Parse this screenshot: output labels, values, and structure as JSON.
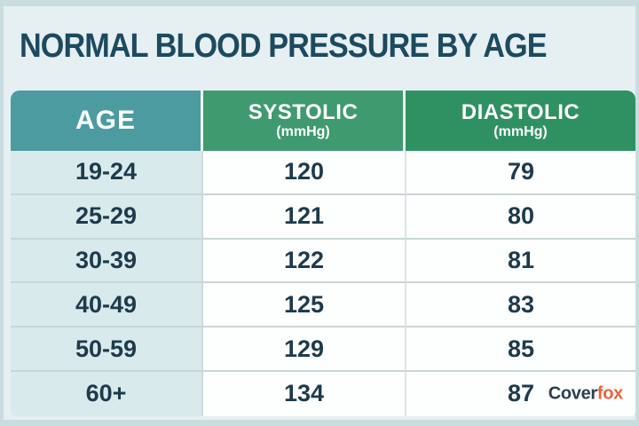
{
  "title": "NORMAL BLOOD PRESSURE BY AGE",
  "brand": {
    "prefix": "Cover",
    "suffix": "fox"
  },
  "colors": {
    "age_header": "#4c9ba1",
    "systolic_header": "#3f9a70",
    "diastolic_header": "#2f9162",
    "age_cell": "#d9eaec",
    "value_cell": "#fdfefe",
    "title_text": "#1c4a60",
    "cell_text": "#1d3b4d",
    "brand_prefix": "#2d3e50",
    "brand_suffix": "#e8633a",
    "canvas": "#e6eff1"
  },
  "chart_data": {
    "type": "table",
    "title": "NORMAL BLOOD PRESSURE BY AGE",
    "columns": [
      {
        "label": "AGE",
        "unit": ""
      },
      {
        "label": "SYSTOLIC",
        "unit": "(mmHg)"
      },
      {
        "label": "DIASTOLIC",
        "unit": "(mmHg)"
      }
    ],
    "rows": [
      {
        "age": "19-24",
        "systolic": "120",
        "diastolic": "79"
      },
      {
        "age": "25-29",
        "systolic": "121",
        "diastolic": "80"
      },
      {
        "age": "30-39",
        "systolic": "122",
        "diastolic": "81"
      },
      {
        "age": "40-49",
        "systolic": "125",
        "diastolic": "83"
      },
      {
        "age": "50-59",
        "systolic": "129",
        "diastolic": "85"
      },
      {
        "age": "60+",
        "systolic": "134",
        "diastolic": "87"
      }
    ]
  }
}
